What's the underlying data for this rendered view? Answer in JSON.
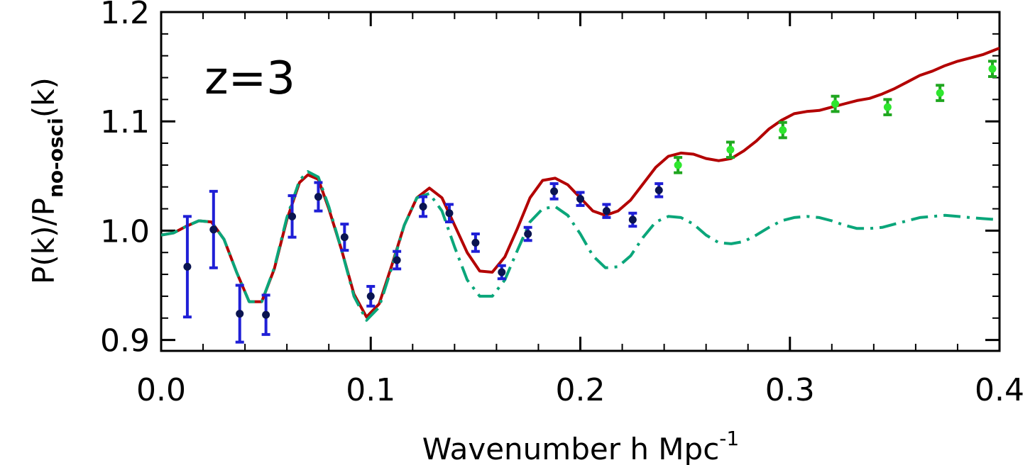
{
  "chart_data": {
    "type": "scatter",
    "title": "",
    "annotation": "z=3",
    "xlabel": "Wavenumber h Mpc",
    "xlabel_sup": "-1",
    "ylabel_main": "P(k)/P",
    "ylabel_sub": "no-osci",
    "ylabel_tail": "(k)",
    "xlim": [
      0.0,
      0.4
    ],
    "ylim": [
      0.89,
      1.2
    ],
    "x_ticks": [
      0.0,
      0.1,
      0.2,
      0.3,
      0.4
    ],
    "x_tick_labels": [
      "0.0",
      "0.1",
      "0.2",
      "0.3",
      "0.4"
    ],
    "y_ticks": [
      0.9,
      1.0,
      1.1,
      1.2
    ],
    "y_tick_labels": [
      "0.9",
      "1.0",
      "1.1",
      "1.2"
    ],
    "grid": false,
    "colors": {
      "solid_line": "#b30000",
      "dashdot_line": "#0aa67a",
      "blue_points": "#0a1450",
      "blue_errorbars": "#1f1fd6",
      "green_points": "#2ee62e",
      "green_errorbars": "#1fa61f"
    },
    "series": [
      {
        "style": "solid",
        "x": [
          0.0,
          0.006,
          0.012,
          0.018,
          0.024,
          0.03,
          0.036,
          0.042,
          0.048,
          0.054,
          0.06,
          0.066,
          0.07,
          0.075,
          0.08,
          0.086,
          0.092,
          0.098,
          0.104,
          0.11,
          0.116,
          0.122,
          0.128,
          0.134,
          0.14,
          0.146,
          0.152,
          0.158,
          0.164,
          0.17,
          0.176,
          0.182,
          0.188,
          0.194,
          0.2,
          0.206,
          0.212,
          0.218,
          0.224,
          0.23,
          0.236,
          0.242,
          0.248,
          0.254,
          0.26,
          0.266,
          0.272,
          0.278,
          0.284,
          0.29,
          0.296,
          0.302,
          0.308,
          0.314,
          0.32,
          0.326,
          0.332,
          0.338,
          0.344,
          0.35,
          0.356,
          0.362,
          0.368,
          0.374,
          0.38,
          0.386,
          0.392,
          0.4
        ],
        "y": [
          0.996,
          0.998,
          1.004,
          1.009,
          1.008,
          0.992,
          0.962,
          0.935,
          0.935,
          0.965,
          1.01,
          1.044,
          1.051,
          1.047,
          1.02,
          0.983,
          0.942,
          0.921,
          0.933,
          0.968,
          1.005,
          1.03,
          1.039,
          1.03,
          1.005,
          0.98,
          0.963,
          0.962,
          0.976,
          1.002,
          1.03,
          1.046,
          1.048,
          1.042,
          1.03,
          1.018,
          1.014,
          1.018,
          1.028,
          1.043,
          1.058,
          1.068,
          1.071,
          1.07,
          1.066,
          1.064,
          1.066,
          1.073,
          1.082,
          1.093,
          1.101,
          1.107,
          1.109,
          1.11,
          1.113,
          1.116,
          1.119,
          1.121,
          1.125,
          1.13,
          1.136,
          1.142,
          1.146,
          1.151,
          1.155,
          1.158,
          1.161,
          1.167
        ]
      },
      {
        "style": "dashdot",
        "x": [
          0.0,
          0.006,
          0.012,
          0.018,
          0.024,
          0.03,
          0.036,
          0.042,
          0.048,
          0.054,
          0.06,
          0.066,
          0.07,
          0.075,
          0.08,
          0.086,
          0.092,
          0.098,
          0.104,
          0.11,
          0.116,
          0.122,
          0.128,
          0.134,
          0.14,
          0.146,
          0.152,
          0.158,
          0.164,
          0.17,
          0.176,
          0.182,
          0.188,
          0.194,
          0.2,
          0.206,
          0.212,
          0.218,
          0.224,
          0.23,
          0.236,
          0.242,
          0.248,
          0.254,
          0.26,
          0.266,
          0.272,
          0.278,
          0.284,
          0.29,
          0.296,
          0.302,
          0.308,
          0.314,
          0.32,
          0.326,
          0.332,
          0.338,
          0.344,
          0.35,
          0.356,
          0.362,
          0.368,
          0.374,
          0.38,
          0.386,
          0.392,
          0.4
        ],
        "y": [
          0.996,
          0.998,
          1.004,
          1.009,
          1.008,
          0.992,
          0.962,
          0.935,
          0.935,
          0.966,
          1.012,
          1.046,
          1.054,
          1.049,
          1.022,
          0.983,
          0.94,
          0.918,
          0.93,
          0.966,
          1.005,
          1.03,
          1.034,
          1.018,
          0.985,
          0.955,
          0.94,
          0.94,
          0.955,
          0.982,
          1.008,
          1.02,
          1.022,
          1.014,
          0.997,
          0.977,
          0.966,
          0.967,
          0.977,
          0.994,
          1.008,
          1.013,
          1.012,
          1.006,
          0.996,
          0.989,
          0.988,
          0.99,
          0.996,
          1.003,
          1.009,
          1.012,
          1.013,
          1.012,
          1.009,
          1.005,
          1.002,
          1.002,
          1.003,
          1.006,
          1.009,
          1.012,
          1.013,
          1.014,
          1.013,
          1.012,
          1.011,
          1.01
        ]
      },
      {
        "style": "points-blue",
        "x": [
          0.0125,
          0.025,
          0.0375,
          0.05,
          0.0625,
          0.075,
          0.0875,
          0.1,
          0.1125,
          0.125,
          0.1375,
          0.15,
          0.1625,
          0.175,
          0.1875,
          0.2,
          0.2125,
          0.225,
          0.2375
        ],
        "y": [
          0.967,
          1.001,
          0.924,
          0.923,
          1.013,
          1.031,
          0.994,
          0.94,
          0.973,
          1.022,
          1.016,
          0.989,
          0.962,
          0.997,
          1.036,
          1.029,
          1.018,
          1.01,
          1.037
        ],
        "err": [
          0.046,
          0.035,
          0.026,
          0.018,
          0.019,
          0.013,
          0.012,
          0.009,
          0.008,
          0.009,
          0.008,
          0.008,
          0.006,
          0.006,
          0.007,
          0.006,
          0.006,
          0.006,
          0.006
        ]
      },
      {
        "style": "points-green",
        "x": [
          0.25,
          0.275,
          0.3,
          0.325,
          0.35,
          0.375,
          0.4
        ],
        "y": [
          1.06,
          1.074,
          1.092,
          1.116,
          1.113,
          1.126,
          1.148
        ],
        "err": [
          0.007,
          0.007,
          0.007,
          0.007,
          0.007,
          0.007,
          0.007
        ]
      }
    ]
  }
}
